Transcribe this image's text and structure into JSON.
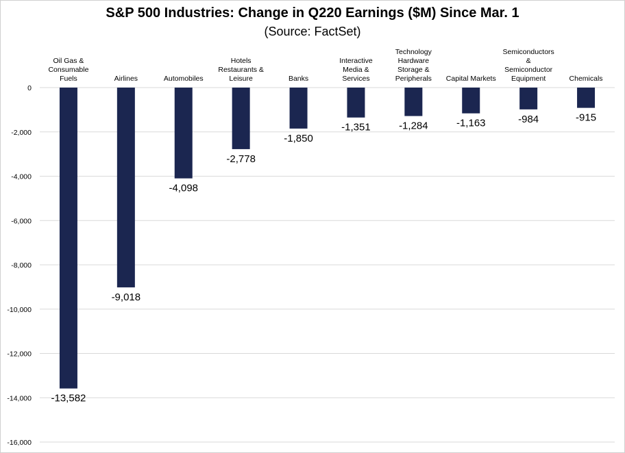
{
  "title": "S&P 500 Industries: Change in Q220 Earnings ($M) Since Mar. 1",
  "subtitle": "(Source: FactSet)",
  "colors": {
    "bar": "#1b2650",
    "grid": "#d9d9d9"
  },
  "chart_data": {
    "type": "bar",
    "categories": [
      [
        "Oil Gas &",
        "Consumable",
        "Fuels"
      ],
      [
        "Airlines"
      ],
      [
        "Automobiles"
      ],
      [
        "Hotels",
        "Restaurants &",
        "Leisure"
      ],
      [
        "Banks"
      ],
      [
        "Interactive",
        "Media &",
        "Services"
      ],
      [
        "Technology",
        "Hardware",
        "Storage &",
        "Peripherals"
      ],
      [
        "Capital Markets"
      ],
      [
        "Semiconductors",
        "&",
        "Semiconductor",
        "Equipment"
      ],
      [
        "Chemicals"
      ]
    ],
    "values": [
      -13582,
      -9018,
      -4098,
      -2778,
      -1850,
      -1351,
      -1284,
      -1163,
      -984,
      -915
    ],
    "value_labels": [
      "-13,582",
      "-9,018",
      "-4,098",
      "-2,778",
      "-1,850",
      "-1,351",
      "-1,284",
      "-1,163",
      "-984",
      "-915"
    ],
    "ylim": [
      -16000,
      0
    ],
    "yticks": [
      0,
      -2000,
      -4000,
      -6000,
      -8000,
      -10000,
      -12000,
      -14000,
      -16000
    ],
    "ytick_labels": [
      "0",
      "-2,000",
      "-4,000",
      "-6,000",
      "-8,000",
      "-10,000",
      "-12,000",
      "-14,000",
      "-16,000"
    ],
    "grid": true,
    "legend": "none"
  }
}
